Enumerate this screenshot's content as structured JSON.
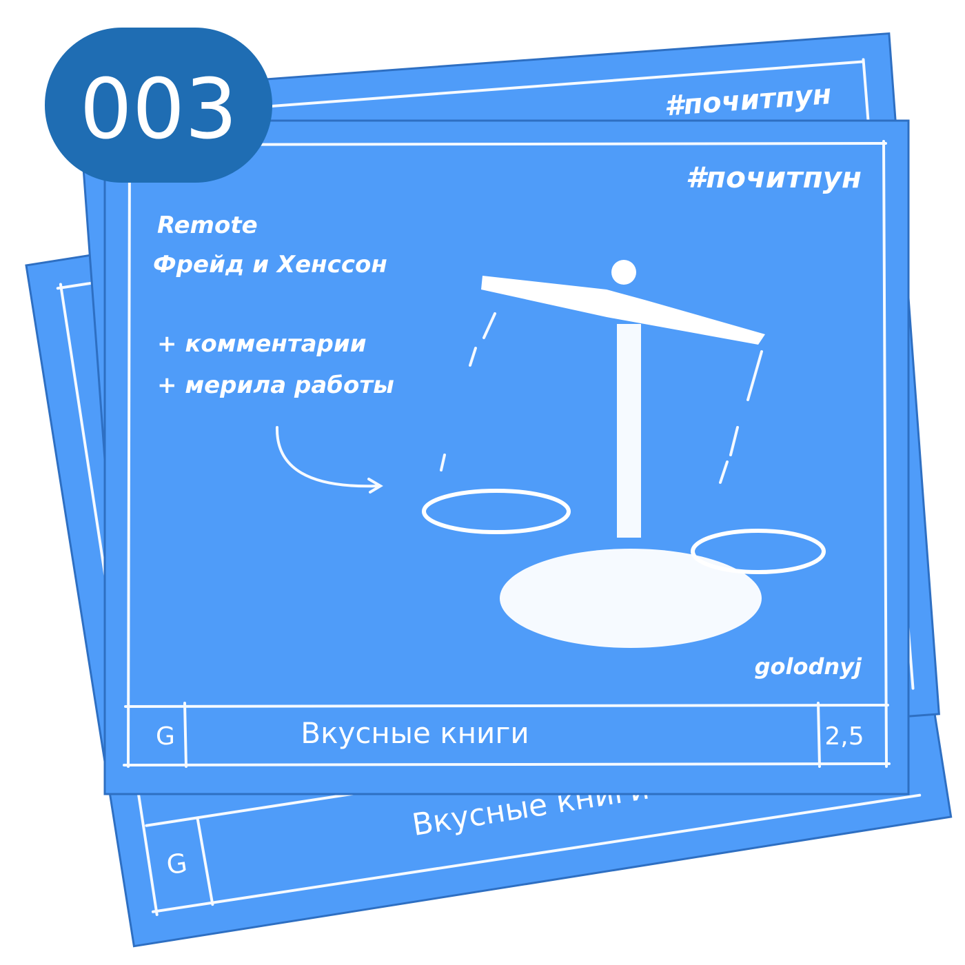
{
  "badge": {
    "number": "003"
  },
  "back_card_upper": {
    "hashtag": "#почитпун"
  },
  "back_card_lower": {
    "title": "Вкусные книги",
    "rating_letter": "G"
  },
  "front_card": {
    "hashtag": "#почитпун",
    "book_title": "Remote",
    "authors": "Фрейд и Хенссон",
    "notes": [
      "+ комментарии",
      "+ мерила работы"
    ],
    "author_signature": "golodnyj",
    "rating_letter": "G",
    "title": "Вкусные книги",
    "score": "2,5"
  }
}
